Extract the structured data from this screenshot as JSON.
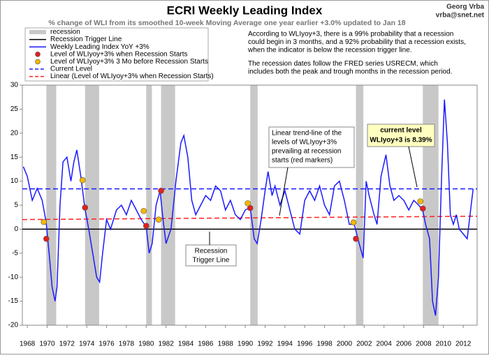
{
  "chart_data": {
    "type": "line",
    "title": "ECRI Weekly Leading Index",
    "subtitle": "% change of WLI from its smoothed 10-week Moving Average one year earlier +3.0% updated to Jan 18",
    "author": [
      "Georg Vrba",
      "vrba@snet.net"
    ],
    "notes": [
      "According to WLIyoy+3, there is a 99% probability that a recession",
      "could begin in 3 months, and a 92% probability that a recession exists,",
      "when the indicator is below the recession trigger line.",
      "The recession dates follow the FRED series USRECM, which",
      "includes both the peak and trough  months in the recession period."
    ],
    "annotations": {
      "trend": [
        "Linear trend-line of the",
        "levels of WLIyoy+3%",
        "prevailing at recession",
        "starts (red markers)"
      ],
      "trigger": [
        "Recession",
        "Trigger Line"
      ],
      "current": [
        "current level",
        "WLIyoy+3 is 8.39%"
      ]
    },
    "xlim": [
      1967.5,
      2013.4
    ],
    "xticks": [
      1968,
      1970,
      1972,
      1974,
      1976,
      1978,
      1980,
      1982,
      1984,
      1986,
      1988,
      1990,
      1992,
      1994,
      1996,
      1998,
      2000,
      2002,
      2004,
      2006,
      2008,
      2010,
      2012
    ],
    "ylim": [
      -20,
      30
    ],
    "yticks": [
      -20,
      -15,
      -10,
      -5,
      0,
      5,
      10,
      15,
      20,
      25,
      30
    ],
    "recession": {
      "name": "recession",
      "color": "#c8c8c8"
    },
    "recessions": [
      {
        "start": 1969.92,
        "end": 1970.92
      },
      {
        "start": 1973.83,
        "end": 1975.25
      },
      {
        "start": 1980.0,
        "end": 1980.58
      },
      {
        "start": 1981.5,
        "end": 1982.92
      },
      {
        "start": 1990.5,
        "end": 1991.25
      },
      {
        "start": 2001.17,
        "end": 2001.92
      },
      {
        "start": 2007.92,
        "end": 2009.5
      }
    ],
    "trigger_line": {
      "name": "Recession Trigger Line",
      "color": "#000000",
      "value": 0
    },
    "series": [
      {
        "name": "Weekly Leading Index YoY +3%",
        "color": "#1a1aff",
        "style": "line",
        "x": [
          1967.6,
          1968,
          1968.5,
          1969,
          1969.5,
          1969.9,
          1970.2,
          1970.5,
          1970.8,
          1971,
          1971.3,
          1971.6,
          1972,
          1972.4,
          1972.7,
          1973,
          1973.4,
          1973.8,
          1974.2,
          1974.6,
          1975,
          1975.3,
          1975.6,
          1976,
          1976.4,
          1977,
          1977.5,
          1978,
          1978.5,
          1979,
          1979.5,
          1980,
          1980.3,
          1980.6,
          1981,
          1981.4,
          1981.7,
          1982,
          1982.5,
          1983,
          1983.5,
          1983.8,
          1984.2,
          1984.6,
          1985,
          1985.5,
          1986,
          1986.5,
          1987,
          1987.5,
          1988,
          1988.5,
          1989,
          1989.5,
          1990,
          1990.5,
          1990.9,
          1991.2,
          1991.6,
          1992,
          1992.3,
          1992.7,
          1993,
          1993.5,
          1994,
          1994.5,
          1995,
          1995.5,
          1996,
          1996.5,
          1997,
          1997.5,
          1998,
          1998.5,
          1999,
          1999.5,
          2000,
          2000.5,
          2001,
          2001.5,
          2001.9,
          2002.2,
          2002.5,
          2003,
          2003.3,
          2003.7,
          2004.2,
          2004.6,
          2005,
          2005.5,
          2006,
          2006.5,
          2007,
          2007.5,
          2007.9,
          2008.2,
          2008.6,
          2008.9,
          2009.2,
          2009.5,
          2009.8,
          2010.1,
          2010.4,
          2010.7,
          2011,
          2011.3,
          2011.6,
          2012,
          2012.4,
          2012.8,
          2013.0
        ],
        "values": [
          13,
          11,
          6,
          8.5,
          6,
          1.5,
          -5,
          -12,
          -15,
          -12,
          5,
          14,
          15,
          10,
          14,
          16.5,
          11,
          4.5,
          0,
          -5,
          -10,
          -11,
          -5,
          2,
          0,
          4,
          5,
          3,
          6,
          4,
          2,
          0.5,
          -5,
          -3,
          5,
          8,
          2,
          -3,
          0,
          10,
          18,
          19.5,
          15,
          6,
          3,
          5,
          7,
          6,
          9,
          8,
          4,
          6,
          3,
          2,
          4,
          4.5,
          -2,
          -3,
          2,
          8,
          12,
          7,
          9,
          5,
          8,
          4,
          0,
          -1,
          6,
          8,
          6,
          9,
          5,
          3,
          9,
          10,
          6,
          1,
          1,
          -3,
          -6,
          10,
          7,
          3,
          1,
          11,
          15.5,
          9,
          6,
          7,
          6,
          4,
          6,
          5,
          4,
          1,
          -2,
          -15,
          -18,
          -10,
          10,
          27,
          18,
          3,
          1,
          3,
          0,
          -1,
          -2,
          5,
          8.39
        ]
      },
      {
        "name": "Level of WLIyoy+3% when Recession Starts",
        "color": "#e02020",
        "style": "markers",
        "x": [
          1969.92,
          1973.83,
          1980.0,
          1981.5,
          1990.5,
          2001.17,
          2007.92
        ],
        "values": [
          -2,
          4.5,
          0.7,
          8,
          4.4,
          -2,
          4.3
        ]
      },
      {
        "name": "Level of WLIyoy+3% 3 Mo before Recession Starts",
        "color": "#f5b800",
        "style": "markers",
        "x": [
          1969.67,
          1973.58,
          1979.75,
          1981.25,
          1990.25,
          2000.92,
          2007.67
        ],
        "values": [
          1.5,
          10.2,
          3.8,
          2,
          5.4,
          1.4,
          5.8
        ]
      },
      {
        "name": "Current Level",
        "color": "#1a1aff",
        "style": "dashed",
        "x": [
          1967.5,
          2013.4
        ],
        "values": [
          8.39,
          8.39
        ]
      },
      {
        "name": "Linear (Level of WLIyoy+3% when Recession Starts)",
        "color": "#ff2020",
        "style": "dashed",
        "x": [
          1967.5,
          2013.4
        ],
        "values": [
          2.0,
          2.7
        ]
      }
    ]
  }
}
